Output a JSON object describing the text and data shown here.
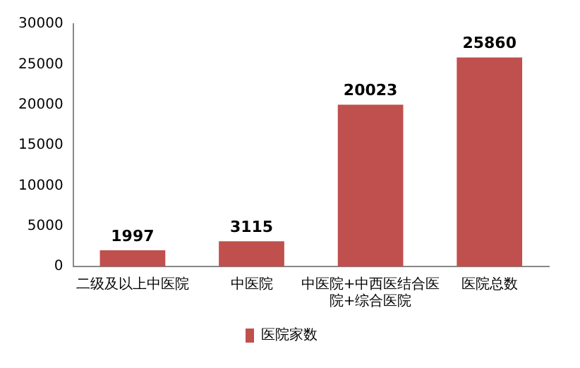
{
  "chart_data": {
    "type": "bar",
    "categories": [
      "二级及以上中医院",
      "中医院",
      "中医院+中西医结合医院+综合医院",
      "医院总数"
    ],
    "series": [
      {
        "name": "医院家数",
        "color": "#c0504d",
        "values": [
          1997,
          3115,
          20023,
          25860
        ]
      }
    ],
    "ylim": [
      0,
      30000
    ],
    "yticks": [
      0,
      5000,
      10000,
      15000,
      20000,
      25000,
      30000
    ],
    "grid": false,
    "legend": "bottom",
    "data_labels": true
  }
}
